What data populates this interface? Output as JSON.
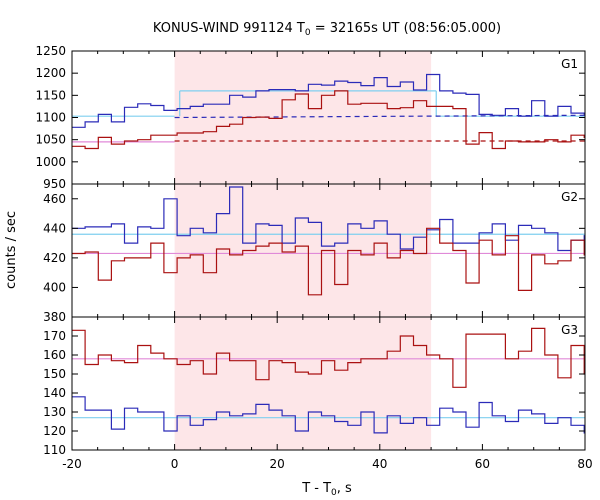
{
  "chart_data": {
    "type": "line",
    "title": "KONUS-WIND 991124 T",
    "title_sub": "0",
    "title_rest": " = 32165s UT (08:56:05.000)",
    "xlabel_main": "T - T",
    "xlabel_sub": "0",
    "xlabel_rest": ", s",
    "ylabel": "counts / sec",
    "xlim": [
      -20,
      80
    ],
    "xticks": [
      "-20",
      "0",
      "20",
      "40",
      "60",
      "80"
    ],
    "shaded_interval": [
      0,
      50
    ],
    "colors": {
      "blue_series": "#2b2bb8",
      "red_series": "#aa1111",
      "blue_fit": "#7fcfef",
      "red_fit": "#e08ad8",
      "shade": "#fde6e8"
    },
    "panels": [
      {
        "label": "G1",
        "ylim": [
          950,
          1250
        ],
        "yticks": [
          "950",
          "1000",
          "1050",
          "1100",
          "1150",
          "1200",
          "1250"
        ],
        "bin_width": 2.56,
        "bin_start": -20,
        "series": [
          {
            "color": "blue_series",
            "values": [
              1078,
              1090,
              1107,
              1090,
              1123,
              1131,
              1127,
              1116,
              1120,
              1125,
              1130,
              1130,
              1150,
              1146,
              1160,
              1163,
              1163,
              1160,
              1175,
              1173,
              1182,
              1179,
              1172,
              1190,
              1170,
              1180,
              1162,
              1197,
              1160,
              1155,
              1152,
              1107,
              1105,
              1120,
              1103,
              1138,
              1103,
              1125,
              1110,
              1108
            ]
          },
          {
            "color": "red_series",
            "values": [
              1035,
              1030,
              1055,
              1040,
              1047,
              1050,
              1060,
              1060,
              1065,
              1065,
              1068,
              1080,
              1085,
              1100,
              1101,
              1098,
              1140,
              1153,
              1120,
              1150,
              1160,
              1130,
              1132,
              1132,
              1120,
              1122,
              1138,
              1125,
              1125,
              1120,
              1040,
              1066,
              1030,
              1047,
              1045,
              1045,
              1050,
              1045,
              1060,
              1055
            ]
          }
        ],
        "fits": [
          {
            "color": "blue_fit",
            "segments": [
              {
                "x": [
                  -20,
                  0
                ],
                "y": 1103
              },
              {
                "x": [
                  1,
                  51
                ],
                "y": 1160
              },
              {
                "x": [
                  51,
                  80
                ],
                "y": 1103
              }
            ]
          },
          {
            "color": "red_fit",
            "segments": [
              {
                "x": [
                  -20,
                  0
                ],
                "y": 1045
              }
            ]
          }
        ],
        "dashed_trends": [
          {
            "color": "blue_series",
            "x": [
              0,
              80
            ],
            "y": [
              1100,
              1105
            ]
          },
          {
            "color": "red_series",
            "x": [
              0,
              80
            ],
            "y": [
              1047,
              1047
            ]
          }
        ]
      },
      {
        "label": "G2",
        "ylim": [
          380,
          470
        ],
        "yticks": [
          "380",
          "400",
          "420",
          "440",
          "460"
        ],
        "bin_width": 2.56,
        "bin_start": -20,
        "series": [
          {
            "color": "blue_series",
            "values": [
              440,
              441,
              441,
              443,
              430,
              441,
              440,
              460,
              435,
              440,
              437,
              450,
              468,
              430,
              443,
              442,
              430,
              447,
              444,
              428,
              430,
              443,
              440,
              445,
              436,
              426,
              434,
              439,
              446,
              430,
              430,
              437,
              443,
              432,
              442,
              440,
              437,
              425,
              432,
              435
            ]
          },
          {
            "color": "red_series",
            "values": [
              423,
              424,
              405,
              418,
              420,
              420,
              430,
              410,
              420,
              422,
              410,
              426,
              422,
              425,
              428,
              430,
              424,
              428,
              395,
              425,
              402,
              425,
              422,
              430,
              420,
              425,
              423,
              440,
              430,
              425,
              403,
              432,
              422,
              435,
              398,
              422,
              416,
              418,
              432,
              422
            ]
          }
        ],
        "fits": [
          {
            "color": "blue_fit",
            "segments": [
              {
                "x": [
                  -20,
                  80
                ],
                "y": 436
              }
            ]
          },
          {
            "color": "red_fit",
            "segments": [
              {
                "x": [
                  -20,
                  80
                ],
                "y": 423
              }
            ]
          }
        ],
        "dashed_trends": []
      },
      {
        "label": "G3",
        "ylim": [
          110,
          180
        ],
        "yticks": [
          "110",
          "120",
          "130",
          "140",
          "150",
          "160",
          "170"
        ],
        "bin_width": 2.56,
        "bin_start": -20,
        "series": [
          {
            "color": "blue_series",
            "values": [
              138,
              131,
              131,
              121,
              132,
              130,
              130,
              120,
              128,
              123,
              126,
              130,
              128,
              129,
              134,
              131,
              128,
              120,
              130,
              128,
              125,
              123,
              130,
              119,
              128,
              124,
              127,
              123,
              132,
              130,
              122,
              135,
              128,
              125,
              131,
              129,
              124,
              127,
              123,
              119
            ]
          },
          {
            "color": "red_series",
            "values": [
              173,
              155,
              160,
              157,
              156,
              165,
              161,
              158,
              155,
              157,
              150,
              161,
              157,
              157,
              147,
              157,
              156,
              151,
              150,
              157,
              152,
              156,
              158,
              158,
              162,
              170,
              165,
              160,
              158,
              143,
              171,
              171,
              171,
              158,
              162,
              174,
              160,
              148,
              165,
              150
            ]
          }
        ],
        "fits": [
          {
            "color": "blue_fit",
            "segments": [
              {
                "x": [
                  -20,
                  80
                ],
                "y": 127
              }
            ]
          },
          {
            "color": "red_fit",
            "segments": [
              {
                "x": [
                  -20,
                  80
                ],
                "y": 158
              }
            ]
          }
        ],
        "dashed_trends": []
      }
    ]
  }
}
